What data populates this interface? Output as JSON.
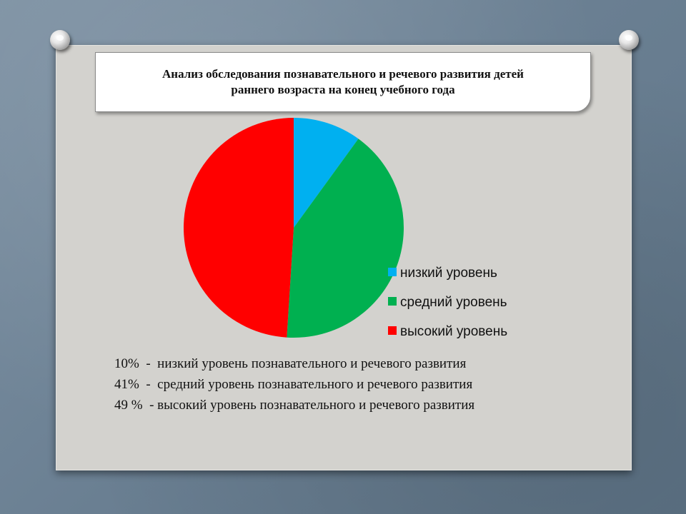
{
  "title": "Анализ обследования познавательного и речевого развития  детей\nраннего возраста на конец учебного года",
  "chart_data": {
    "type": "pie",
    "title": "Анализ обследования познавательного и речевого развития  детей раннего возраста на конец учебного года",
    "start_angle_deg": 0,
    "direction": "clockwise",
    "legend_position": "right",
    "slices": [
      {
        "label": "низкий уровень",
        "value": 10,
        "color": "#00b0f0"
      },
      {
        "label": "средний уровень",
        "value": 41,
        "color": "#00b050"
      },
      {
        "label": "высокий уровень",
        "value": 49,
        "color": "#ff0000"
      }
    ]
  },
  "stats": [
    "10%  -  низкий уровень познавательного и речевого развития",
    "41%  -  средний уровень познавательного и речевого развития",
    "49 %  - высокий уровень познавательного и речевого развития"
  ]
}
